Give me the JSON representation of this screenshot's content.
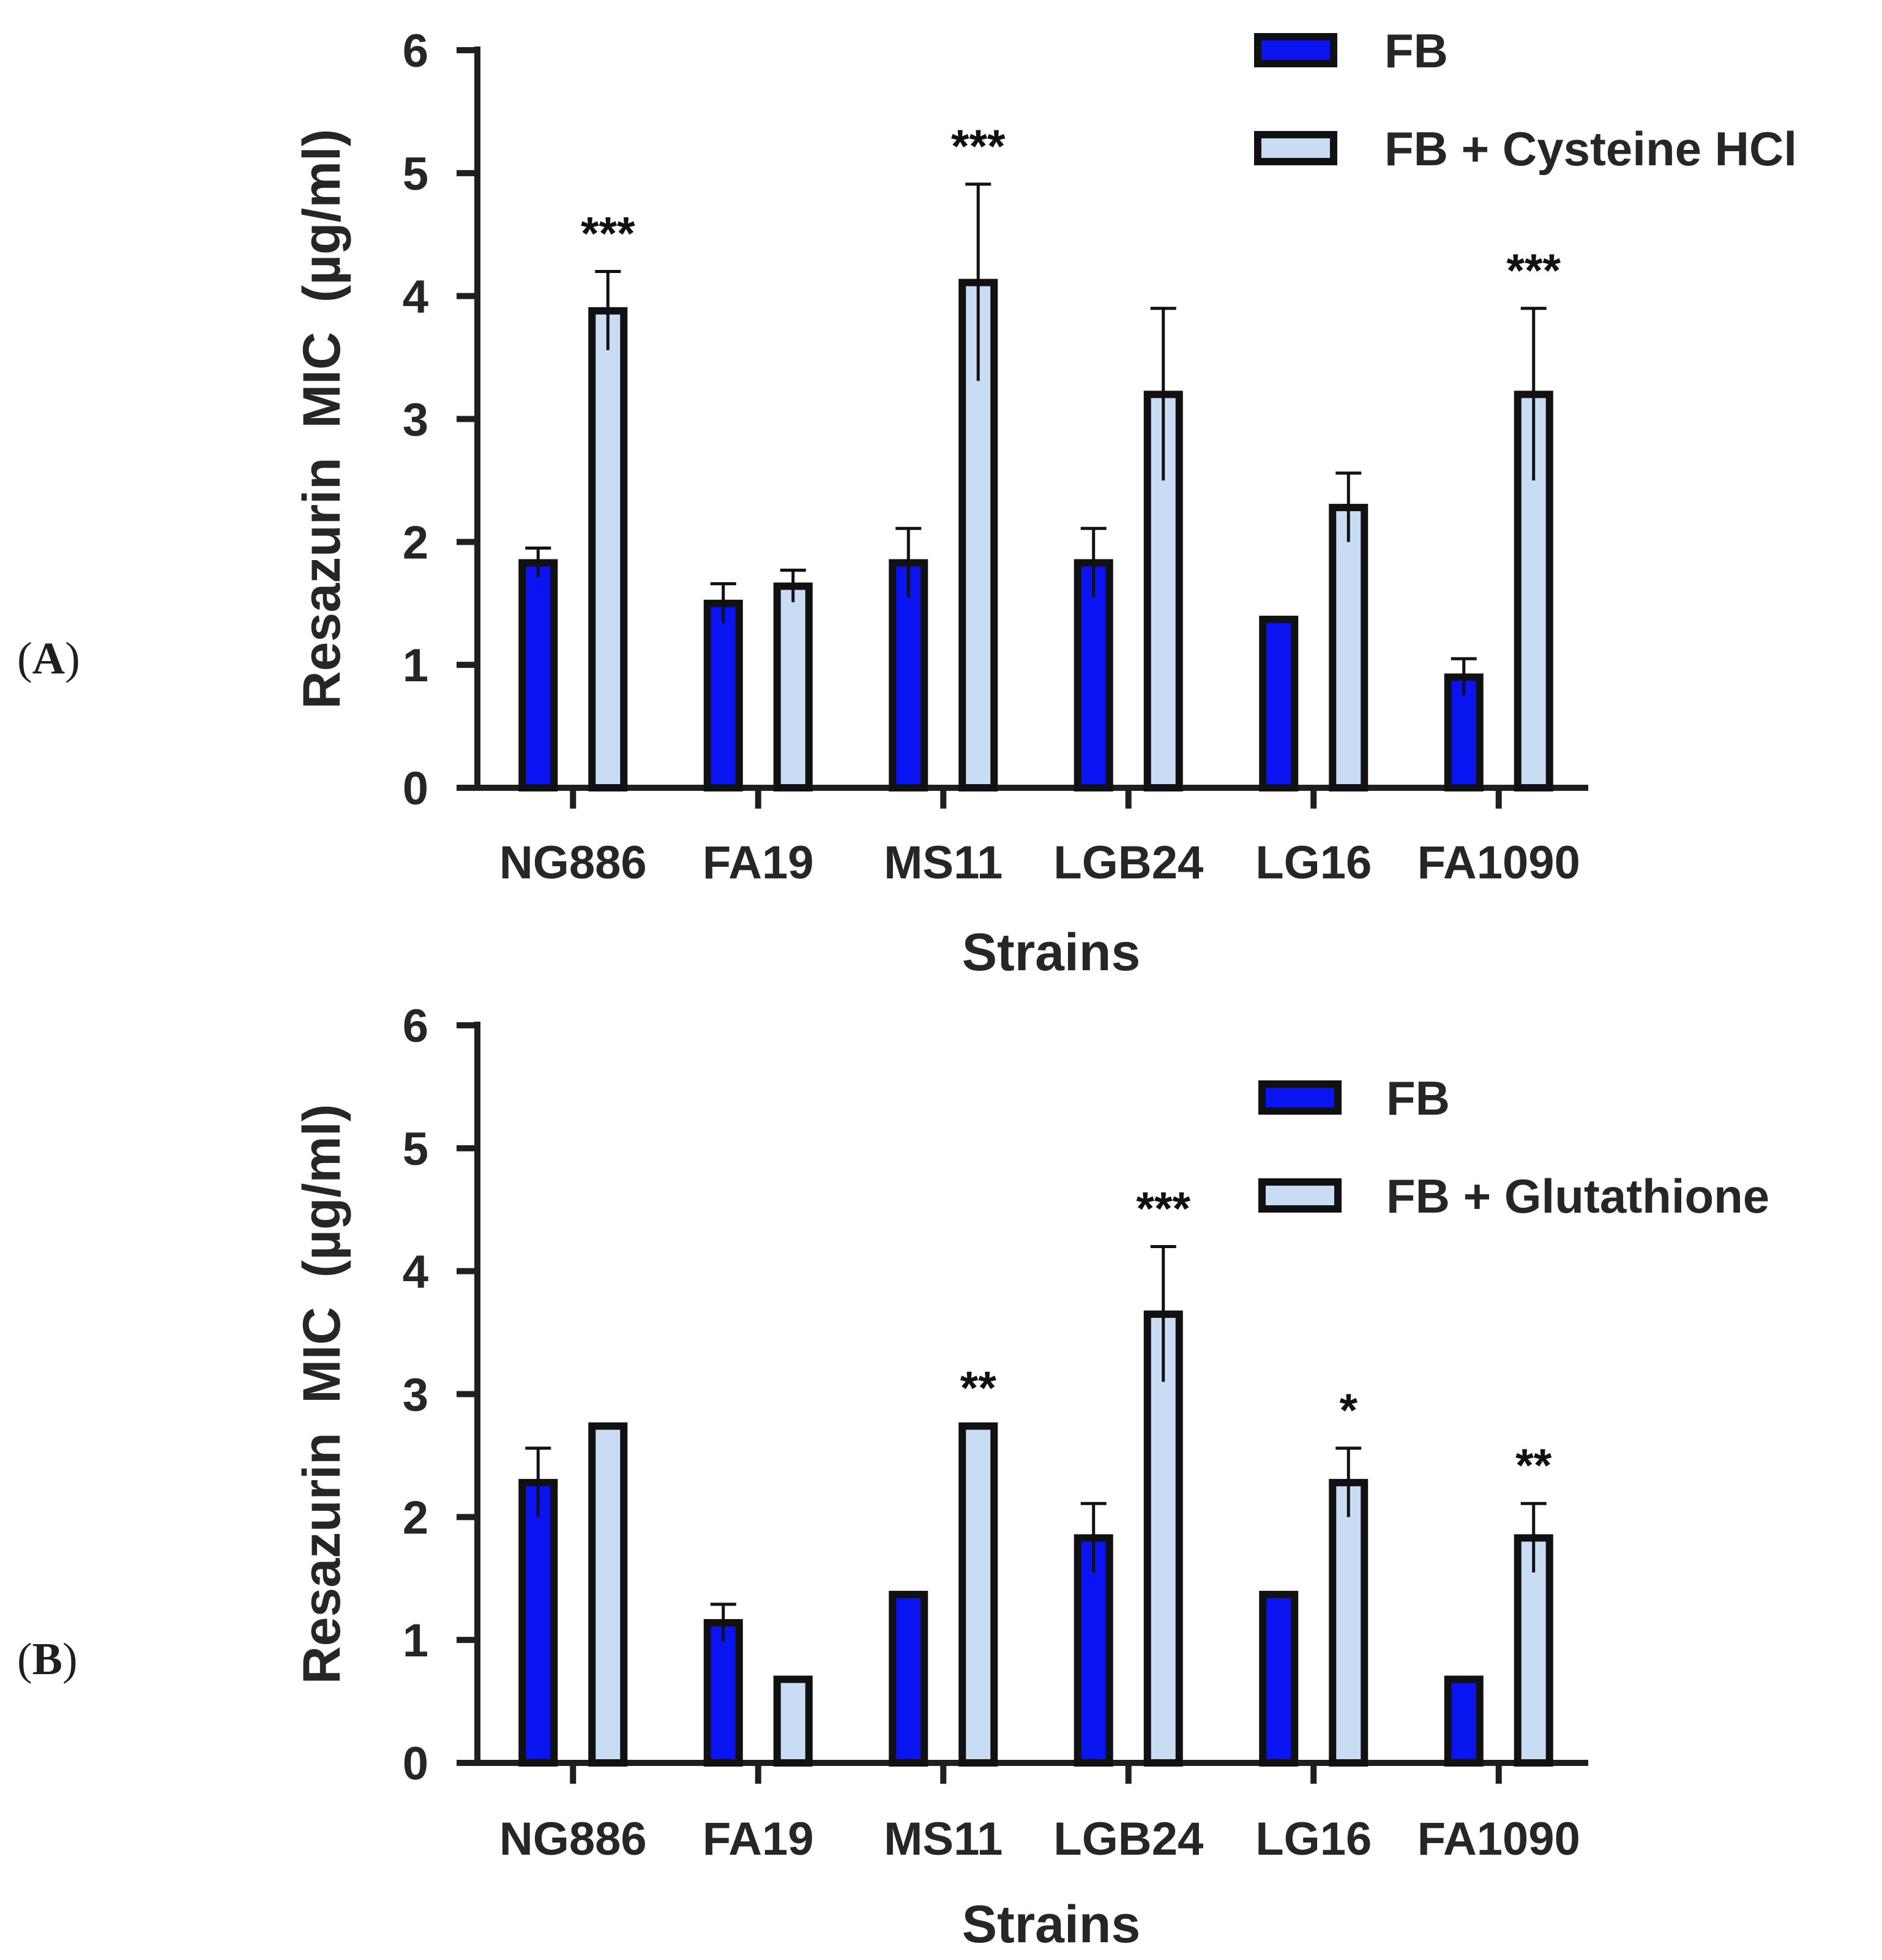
{
  "chart_data": [
    {
      "panel": "A",
      "panel_label": [
        "(",
        "A",
        ")"
      ],
      "type": "bar",
      "xlabel": "Strains",
      "ylabel": "Resazurin  MIC  (µg/ml)",
      "ylim": [
        0,
        6
      ],
      "yticks": [
        0,
        1,
        2,
        3,
        4,
        5,
        6
      ],
      "legend_position": "top-right",
      "categories": [
        "NG886",
        "FA19",
        "MS11",
        "LGB24",
        "LG16",
        "FA1090"
      ],
      "series": [
        {
          "name": "FB",
          "color": "#0a14f0",
          "values": [
            1.83,
            1.5,
            1.83,
            1.83,
            1.37,
            0.9
          ],
          "errors": [
            0.12,
            0.16,
            0.28,
            0.28,
            0,
            0.15
          ]
        },
        {
          "name": "FB + Cysteine HCl",
          "color": "#c8dcf4",
          "values": [
            3.88,
            1.64,
            4.11,
            3.2,
            2.28,
            3.2
          ],
          "errors": [
            0.32,
            0.13,
            0.8,
            0.7,
            0.28,
            0.7
          ]
        }
      ],
      "significance": [
        "***",
        "",
        "***",
        "",
        "",
        "***"
      ]
    },
    {
      "panel": "B",
      "panel_label": [
        "(",
        "B",
        ")"
      ],
      "type": "bar",
      "xlabel": "Strains",
      "ylabel": "Resazurin  MIC  (µg/ml)",
      "ylim": [
        0,
        6
      ],
      "yticks": [
        0,
        1,
        2,
        3,
        4,
        5,
        6
      ],
      "legend_position": "top-right",
      "categories": [
        "NG886",
        "FA19",
        "MS11",
        "LGB24",
        "LG16",
        "FA1090"
      ],
      "series": [
        {
          "name": "FB",
          "color": "#0a14f0",
          "values": [
            2.28,
            1.14,
            1.37,
            1.83,
            1.37,
            0.68
          ],
          "errors": [
            0.28,
            0.15,
            0,
            0.28,
            0,
            0
          ]
        },
        {
          "name": "FB + Glutathione",
          "color": "#c8dcf4",
          "values": [
            2.74,
            0.68,
            2.74,
            3.65,
            2.28,
            1.83
          ],
          "errors": [
            0,
            0,
            0,
            0.55,
            0.28,
            0.28
          ]
        }
      ],
      "significance": [
        "",
        "",
        "**",
        "***",
        "*",
        "**"
      ]
    }
  ]
}
